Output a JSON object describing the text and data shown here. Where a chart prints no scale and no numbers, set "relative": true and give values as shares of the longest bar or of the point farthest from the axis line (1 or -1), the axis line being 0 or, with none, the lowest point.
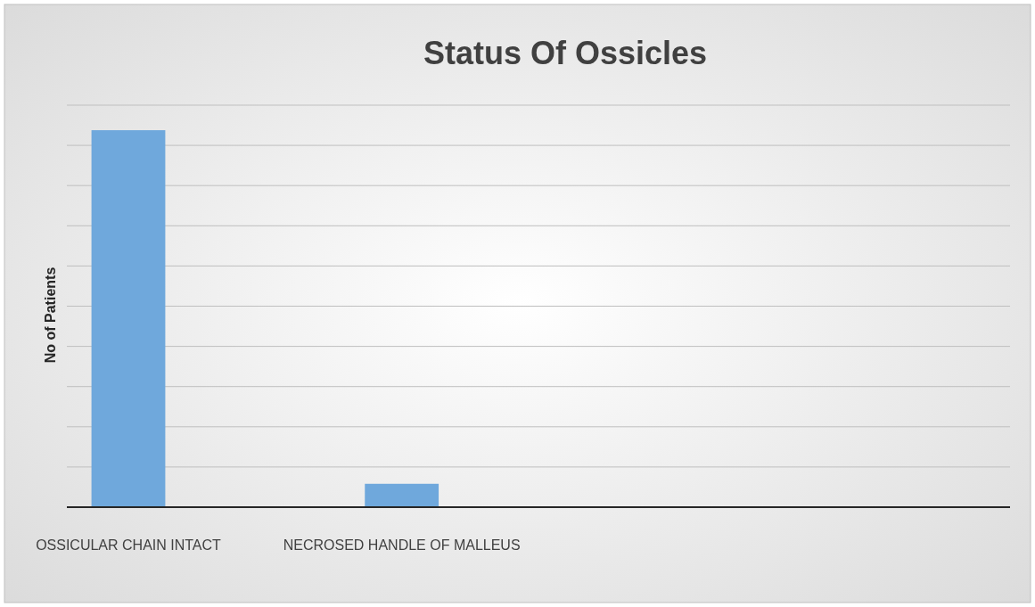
{
  "chart_data": {
    "type": "bar",
    "title": "Status Of Ossicles",
    "ylabel": "No of Patients",
    "categories": [
      "OSSICULAR CHAIN INTACT",
      "NECROSED HANDLE OF MALLEUS",
      null,
      null
    ],
    "values": [
      1,
      0.062,
      null,
      null
    ],
    "color": "#6fa8dc",
    "relative": true,
    "grid": "y"
  }
}
